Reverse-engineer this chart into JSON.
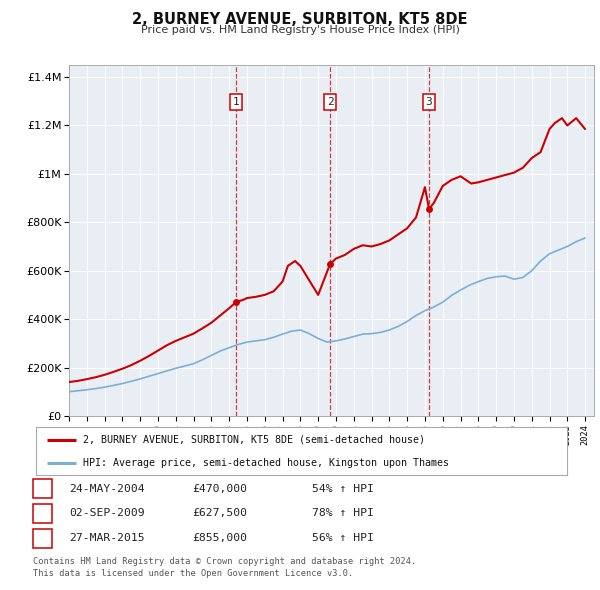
{
  "title": "2, BURNEY AVENUE, SURBITON, KT5 8DE",
  "subtitle": "Price paid vs. HM Land Registry's House Price Index (HPI)",
  "line1_label": "2, BURNEY AVENUE, SURBITON, KT5 8DE (semi-detached house)",
  "line2_label": "HPI: Average price, semi-detached house, Kingston upon Thames",
  "line1_color": "#cc0000",
  "line2_color": "#7bafd4",
  "transactions": [
    {
      "num": 1,
      "date": "24-MAY-2004",
      "price": 470000,
      "pct": "54%",
      "year": 2004.38
    },
    {
      "num": 2,
      "date": "02-SEP-2009",
      "price": 627500,
      "pct": "78%",
      "year": 2009.67
    },
    {
      "num": 3,
      "date": "27-MAR-2015",
      "price": 855000,
      "pct": "56%",
      "year": 2015.23
    }
  ],
  "footnote1": "Contains HM Land Registry data © Crown copyright and database right 2024.",
  "footnote2": "This data is licensed under the Open Government Licence v3.0.",
  "plot_bg_color": "#e8eef4",
  "grid_color": "#ffffff",
  "ylim": [
    0,
    1450000
  ],
  "xlim_start": 1995,
  "xlim_end": 2024.5,
  "hpi_line_data": {
    "years": [
      1995.0,
      1995.5,
      1996.0,
      1996.5,
      1997.0,
      1997.5,
      1998.0,
      1998.5,
      1999.0,
      1999.5,
      2000.0,
      2000.5,
      2001.0,
      2001.5,
      2002.0,
      2002.5,
      2003.0,
      2003.5,
      2004.0,
      2004.5,
      2005.0,
      2005.5,
      2006.0,
      2006.5,
      2007.0,
      2007.5,
      2008.0,
      2008.5,
      2009.0,
      2009.5,
      2010.0,
      2010.5,
      2011.0,
      2011.5,
      2012.0,
      2012.5,
      2013.0,
      2013.5,
      2014.0,
      2014.5,
      2015.0,
      2015.5,
      2016.0,
      2016.5,
      2017.0,
      2017.5,
      2018.0,
      2018.5,
      2019.0,
      2019.5,
      2020.0,
      2020.5,
      2021.0,
      2021.5,
      2022.0,
      2022.5,
      2023.0,
      2023.5,
      2024.0
    ],
    "values": [
      100000,
      104000,
      108000,
      113000,
      119000,
      126000,
      134000,
      143000,
      153000,
      164000,
      175000,
      186000,
      197000,
      206000,
      216000,
      232000,
      250000,
      268000,
      282000,
      295000,
      305000,
      310000,
      315000,
      325000,
      338000,
      350000,
      355000,
      340000,
      320000,
      305000,
      310000,
      318000,
      328000,
      338000,
      340000,
      345000,
      355000,
      370000,
      390000,
      415000,
      435000,
      450000,
      470000,
      498000,
      520000,
      540000,
      555000,
      568000,
      575000,
      578000,
      565000,
      572000,
      600000,
      640000,
      670000,
      685000,
      700000,
      720000,
      735000
    ]
  },
  "price_line_data": {
    "years": [
      1995.0,
      1995.5,
      1996.0,
      1996.5,
      1997.0,
      1997.5,
      1998.0,
      1998.5,
      1999.0,
      1999.5,
      2000.0,
      2000.5,
      2001.0,
      2001.5,
      2002.0,
      2002.5,
      2003.0,
      2003.5,
      2004.0,
      2004.38,
      2004.8,
      2005.0,
      2005.5,
      2006.0,
      2006.5,
      2007.0,
      2007.3,
      2007.7,
      2008.0,
      2008.5,
      2009.0,
      2009.67,
      2010.0,
      2010.5,
      2011.0,
      2011.5,
      2012.0,
      2012.5,
      2013.0,
      2013.5,
      2014.0,
      2014.5,
      2015.0,
      2015.23,
      2015.5,
      2016.0,
      2016.5,
      2017.0,
      2017.3,
      2017.6,
      2018.0,
      2018.5,
      2019.0,
      2019.5,
      2020.0,
      2020.5,
      2021.0,
      2021.5,
      2022.0,
      2022.3,
      2022.7,
      2023.0,
      2023.5,
      2024.0
    ],
    "values": [
      140000,
      145000,
      152000,
      160000,
      170000,
      182000,
      195000,
      210000,
      228000,
      248000,
      270000,
      292000,
      310000,
      325000,
      340000,
      362000,
      385000,
      415000,
      445000,
      470000,
      480000,
      487000,
      492000,
      500000,
      515000,
      555000,
      620000,
      640000,
      620000,
      560000,
      500000,
      627500,
      650000,
      665000,
      690000,
      705000,
      700000,
      710000,
      725000,
      750000,
      775000,
      820000,
      945000,
      855000,
      880000,
      950000,
      975000,
      990000,
      975000,
      960000,
      965000,
      975000,
      985000,
      995000,
      1005000,
      1025000,
      1065000,
      1090000,
      1185000,
      1210000,
      1230000,
      1200000,
      1230000,
      1185000
    ]
  }
}
